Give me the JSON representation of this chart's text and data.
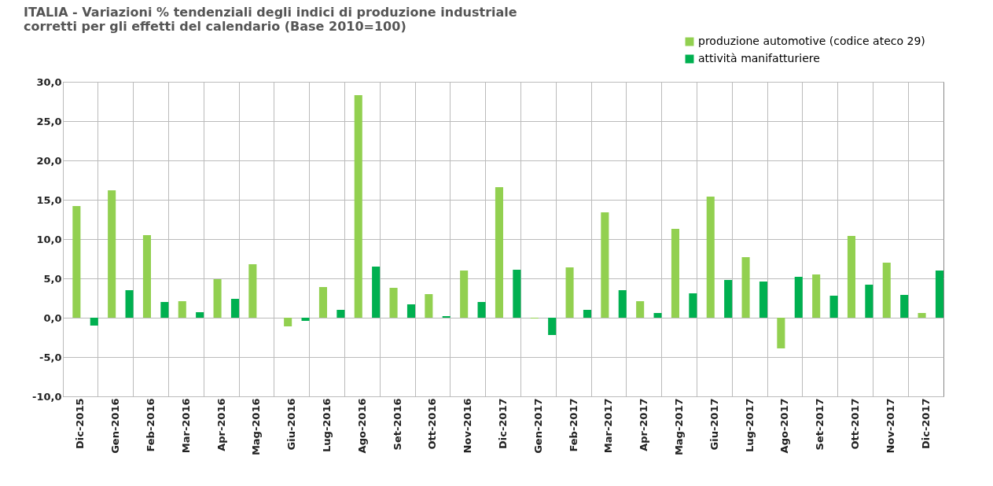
{
  "chart_data": {
    "type": "bar",
    "title": "ITALIA - Variazioni % tendenziali degli indici di produzione industriale\ncorretti per gli effetti del calendario (Base 2010=100)",
    "categories": [
      "Dic-2015",
      "Gen-2016",
      "Feb-2016",
      "Mar-2016",
      "Apr-2016",
      "Mag-2016",
      "Giu-2016",
      "Lug-2016",
      "Ago-2016",
      "Set-2016",
      "Ott-2016",
      "Nov-2016",
      "Dic-2017",
      "Gen-2017",
      "Feb-2017",
      "Mar-2017",
      "Apr-2017",
      "Mag-2017",
      "Giu-2017",
      "Lug-2017",
      "Ago-2017",
      "Set-2017",
      "Ott-2017",
      "Nov-2017",
      "Dic-2017"
    ],
    "series": [
      {
        "name": "produzione automotive (codice ateco 29)",
        "color": "#92d050",
        "values": [
          14.2,
          16.2,
          10.5,
          2.1,
          4.9,
          6.8,
          -1.1,
          3.9,
          28.3,
          3.8,
          3.0,
          6.0,
          16.6,
          -0.1,
          6.4,
          13.4,
          2.1,
          11.3,
          15.4,
          7.7,
          -3.9,
          5.5,
          10.4,
          7.0,
          0.6
        ]
      },
      {
        "name": "attività manifatturiere",
        "color": "#00b050",
        "values": [
          -1.0,
          3.5,
          2.0,
          0.7,
          2.4,
          0.0,
          -0.4,
          1.0,
          6.5,
          1.7,
          0.2,
          2.0,
          6.1,
          -2.2,
          1.0,
          3.5,
          0.6,
          3.1,
          4.8,
          4.6,
          5.2,
          2.8,
          4.2,
          2.9,
          6.0
        ]
      }
    ],
    "ylim": [
      -10,
      30
    ],
    "yticks": [
      {
        "value": -10,
        "label": "-10,0"
      },
      {
        "value": -5,
        "label": "-5,0"
      },
      {
        "value": 0,
        "label": "0,0"
      },
      {
        "value": 5,
        "label": "5,0"
      },
      {
        "value": 10,
        "label": "10,0"
      },
      {
        "value": 15,
        "label": "15,0"
      },
      {
        "value": 20,
        "label": "20,0"
      },
      {
        "value": 25,
        "label": "25,0"
      },
      {
        "value": 30,
        "label": "30,0"
      }
    ],
    "grid": true,
    "legend": "top right"
  }
}
